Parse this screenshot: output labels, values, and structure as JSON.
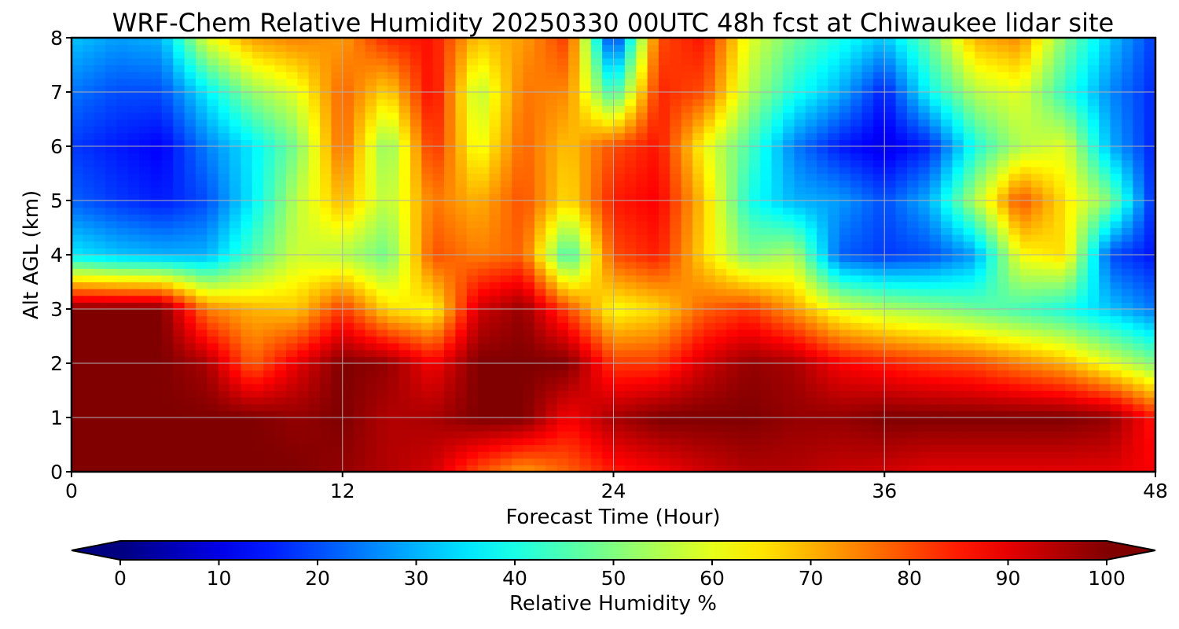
{
  "chart_data": {
    "type": "heatmap",
    "title": "WRF-Chem Relative Humidity 20250330 00UTC 48h fcst at Chiwaukee lidar site",
    "xlabel": "Forecast Time (Hour)",
    "ylabel": "Alt AGL (km)",
    "xlim": [
      0,
      48
    ],
    "ylim": [
      0,
      8
    ],
    "x_ticks": [
      0,
      12,
      24,
      36,
      48
    ],
    "y_ticks": [
      0,
      1,
      2,
      3,
      4,
      5,
      6,
      7,
      8
    ],
    "grid": true,
    "x": [
      0,
      2,
      4,
      6,
      8,
      10,
      12,
      14,
      16,
      18,
      20,
      22,
      24,
      26,
      28,
      30,
      32,
      34,
      36,
      38,
      40,
      42,
      44,
      46,
      48
    ],
    "y": [
      0,
      1,
      2,
      3,
      4,
      5,
      6,
      7,
      8
    ],
    "z": [
      [
        100,
        100,
        100,
        100,
        100,
        100,
        98,
        95,
        92,
        80,
        72,
        78,
        85,
        88,
        92,
        95,
        95,
        93,
        92,
        90,
        90,
        90,
        90,
        90,
        88
      ],
      [
        100,
        100,
        100,
        100,
        100,
        98,
        100,
        95,
        96,
        100,
        100,
        88,
        96,
        100,
        100,
        100,
        98,
        98,
        100,
        100,
        100,
        100,
        100,
        98,
        85
      ],
      [
        100,
        100,
        100,
        96,
        78,
        90,
        100,
        98,
        88,
        100,
        100,
        100,
        82,
        82,
        92,
        98,
        96,
        88,
        85,
        82,
        80,
        75,
        70,
        60,
        50
      ],
      [
        100,
        100,
        100,
        75,
        70,
        68,
        82,
        66,
        62,
        92,
        98,
        80,
        62,
        66,
        78,
        82,
        72,
        60,
        55,
        52,
        48,
        44,
        40,
        32,
        24
      ],
      [
        36,
        32,
        30,
        30,
        45,
        58,
        55,
        48,
        80,
        75,
        78,
        42,
        80,
        85,
        66,
        50,
        55,
        22,
        18,
        20,
        28,
        62,
        66,
        20,
        14
      ],
      [
        22,
        18,
        15,
        20,
        36,
        56,
        70,
        55,
        76,
        70,
        80,
        65,
        85,
        88,
        68,
        40,
        30,
        28,
        20,
        30,
        55,
        80,
        65,
        50,
        15
      ],
      [
        18,
        15,
        12,
        25,
        36,
        50,
        78,
        50,
        84,
        60,
        78,
        68,
        80,
        86,
        62,
        45,
        25,
        15,
        10,
        16,
        40,
        55,
        60,
        30,
        15
      ],
      [
        24,
        20,
        20,
        36,
        52,
        60,
        78,
        66,
        88,
        55,
        76,
        74,
        42,
        84,
        80,
        55,
        40,
        30,
        15,
        38,
        55,
        60,
        42,
        26,
        16
      ],
      [
        32,
        28,
        30,
        60,
        72,
        75,
        72,
        84,
        86,
        68,
        72,
        82,
        14,
        80,
        86,
        60,
        48,
        40,
        32,
        48,
        70,
        74,
        50,
        32,
        18
      ]
    ],
    "colorbar": {
      "label": "Relative Humidity %",
      "ticks": [
        0,
        10,
        20,
        30,
        40,
        50,
        60,
        70,
        80,
        90,
        100
      ],
      "range": [
        0,
        100
      ],
      "extend": "both",
      "colormap": "jet"
    }
  }
}
